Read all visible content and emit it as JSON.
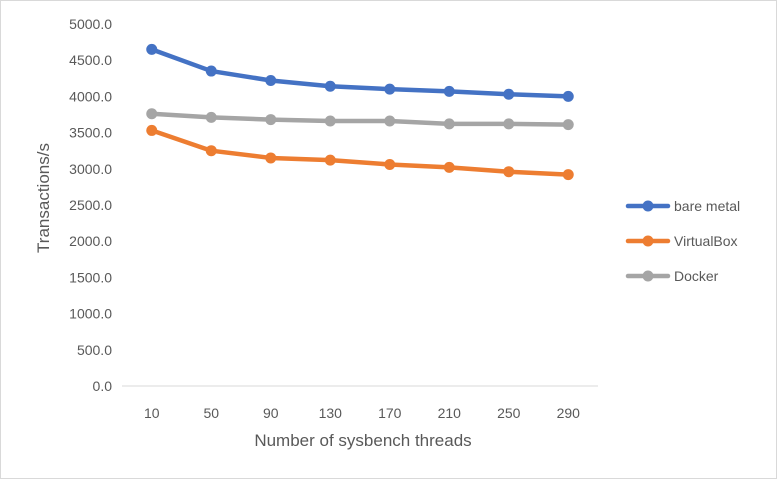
{
  "chart_data": {
    "type": "line",
    "title": "",
    "xlabel": "Number of sysbench threads",
    "ylabel": "Transactions/s",
    "categories": [
      "10",
      "50",
      "90",
      "130",
      "170",
      "210",
      "250",
      "290"
    ],
    "ylim": [
      0,
      5000
    ],
    "y_tick_step": 500,
    "y_tick_labels": [
      "0.0",
      "500.0",
      "1000.0",
      "1500.0",
      "2000.0",
      "2500.0",
      "3000.0",
      "3500.0",
      "4000.0",
      "4500.0",
      "5000.0"
    ],
    "grid": false,
    "legend_position": "right",
    "series": [
      {
        "name": "bare metal",
        "color": "#4472c4",
        "values": [
          4650,
          4350,
          4220,
          4140,
          4100,
          4070,
          4030,
          4000
        ]
      },
      {
        "name": "VirtualBox",
        "color": "#ed7d31",
        "values": [
          3530,
          3250,
          3150,
          3120,
          3060,
          3020,
          2960,
          2920
        ]
      },
      {
        "name": "Docker",
        "color": "#a5a5a5",
        "values": [
          3760,
          3710,
          3680,
          3660,
          3660,
          3620,
          3620,
          3610
        ]
      }
    ]
  }
}
